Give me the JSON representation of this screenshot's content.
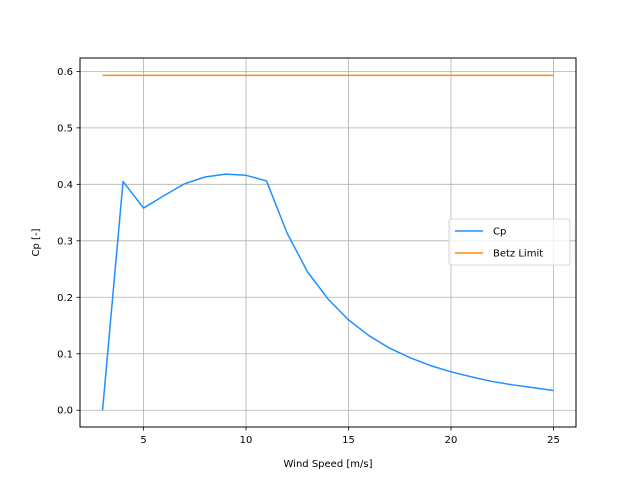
{
  "chart_data": {
    "type": "line",
    "xlabel": "Wind Speed [m/s]",
    "ylabel": "Cp [-]",
    "xlim": [
      1.9,
      26.1
    ],
    "ylim": [
      -0.0297,
      0.6237
    ],
    "xticks": [
      5,
      10,
      15,
      20,
      25
    ],
    "yticks": [
      0.0,
      0.1,
      0.2,
      0.3,
      0.4,
      0.5,
      0.6
    ],
    "xtick_labels": [
      "5",
      "10",
      "15",
      "20",
      "25"
    ],
    "ytick_labels": [
      "0.0",
      "0.1",
      "0.2",
      "0.3",
      "0.4",
      "0.5",
      "0.6"
    ],
    "grid": true,
    "legend_position": "center-right",
    "series": [
      {
        "name": "Cp",
        "color": "#1e90ff",
        "x": [
          3,
          4,
          5,
          6,
          7,
          8,
          9,
          10,
          11,
          12,
          13,
          14,
          15,
          16,
          17,
          18,
          19,
          20,
          21,
          22,
          23,
          24,
          25
        ],
        "y": [
          0.0,
          0.405,
          0.358,
          0.38,
          0.401,
          0.413,
          0.418,
          0.416,
          0.406,
          0.314,
          0.245,
          0.197,
          0.16,
          0.132,
          0.11,
          0.093,
          0.079,
          0.068,
          0.059,
          0.051,
          0.045,
          0.04,
          0.035
        ]
      },
      {
        "name": "Betz Limit",
        "color": "#ff8c00",
        "x": [
          3,
          25
        ],
        "y": [
          0.593,
          0.593
        ]
      }
    ]
  }
}
